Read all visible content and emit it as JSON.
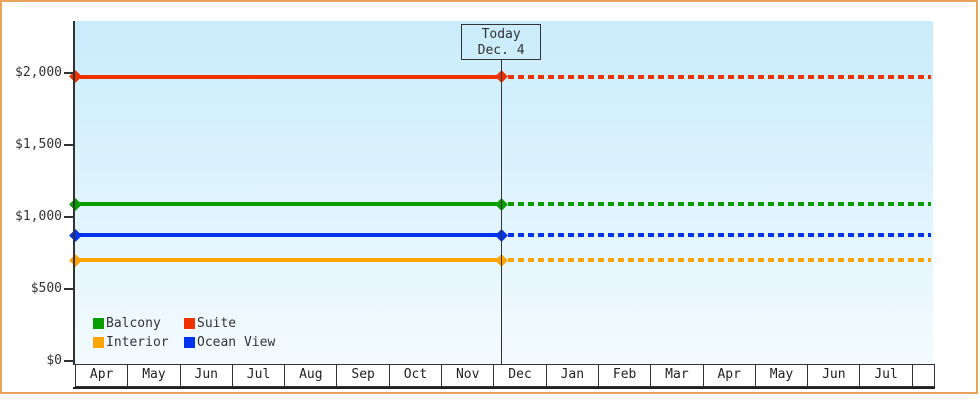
{
  "frame": {
    "border_color": "#eaa55c",
    "background": "#ffffff"
  },
  "chart_data": {
    "type": "line",
    "title": "",
    "xlabel": "",
    "ylabel": "",
    "months": [
      "Apr",
      "May",
      "Jun",
      "Jul",
      "Aug",
      "Sep",
      "Oct",
      "Nov",
      "Dec",
      "Jan",
      "Feb",
      "Mar",
      "Apr",
      "May",
      "Jun",
      "Jul"
    ],
    "y_ticks": [
      {
        "label": "$2,000",
        "value": 2000
      },
      {
        "label": "$1,500",
        "value": 1500
      },
      {
        "label": "$1,000",
        "value": 1000
      },
      {
        "label": "$500",
        "value": 500
      },
      {
        "label": "$0",
        "value": 0
      }
    ],
    "ylim": [
      0,
      2370
    ],
    "grid": false,
    "plot_background_top": "#c9ecfb",
    "plot_background_bottom": "#f3fbff",
    "today": {
      "line1": "Today",
      "line2": "Dec. 4",
      "month_index": 8,
      "day": 4
    },
    "series": [
      {
        "name": "Suite",
        "value": 1975,
        "color": "#ee3300",
        "style": "solid-then-dashed"
      },
      {
        "name": "Balcony",
        "value": 1090,
        "color": "#0a9d00",
        "style": "solid-then-dashed"
      },
      {
        "name": "Ocean View",
        "value": 875,
        "color": "#0033ee",
        "style": "solid-then-dashed"
      },
      {
        "name": "Interior",
        "value": 700,
        "color": "#ffa400",
        "style": "solid-then-dashed"
      }
    ],
    "legend": {
      "position": "bottom-left-inside",
      "rows": [
        [
          "Balcony",
          "Suite"
        ],
        [
          "Interior",
          "Ocean View"
        ]
      ]
    }
  }
}
